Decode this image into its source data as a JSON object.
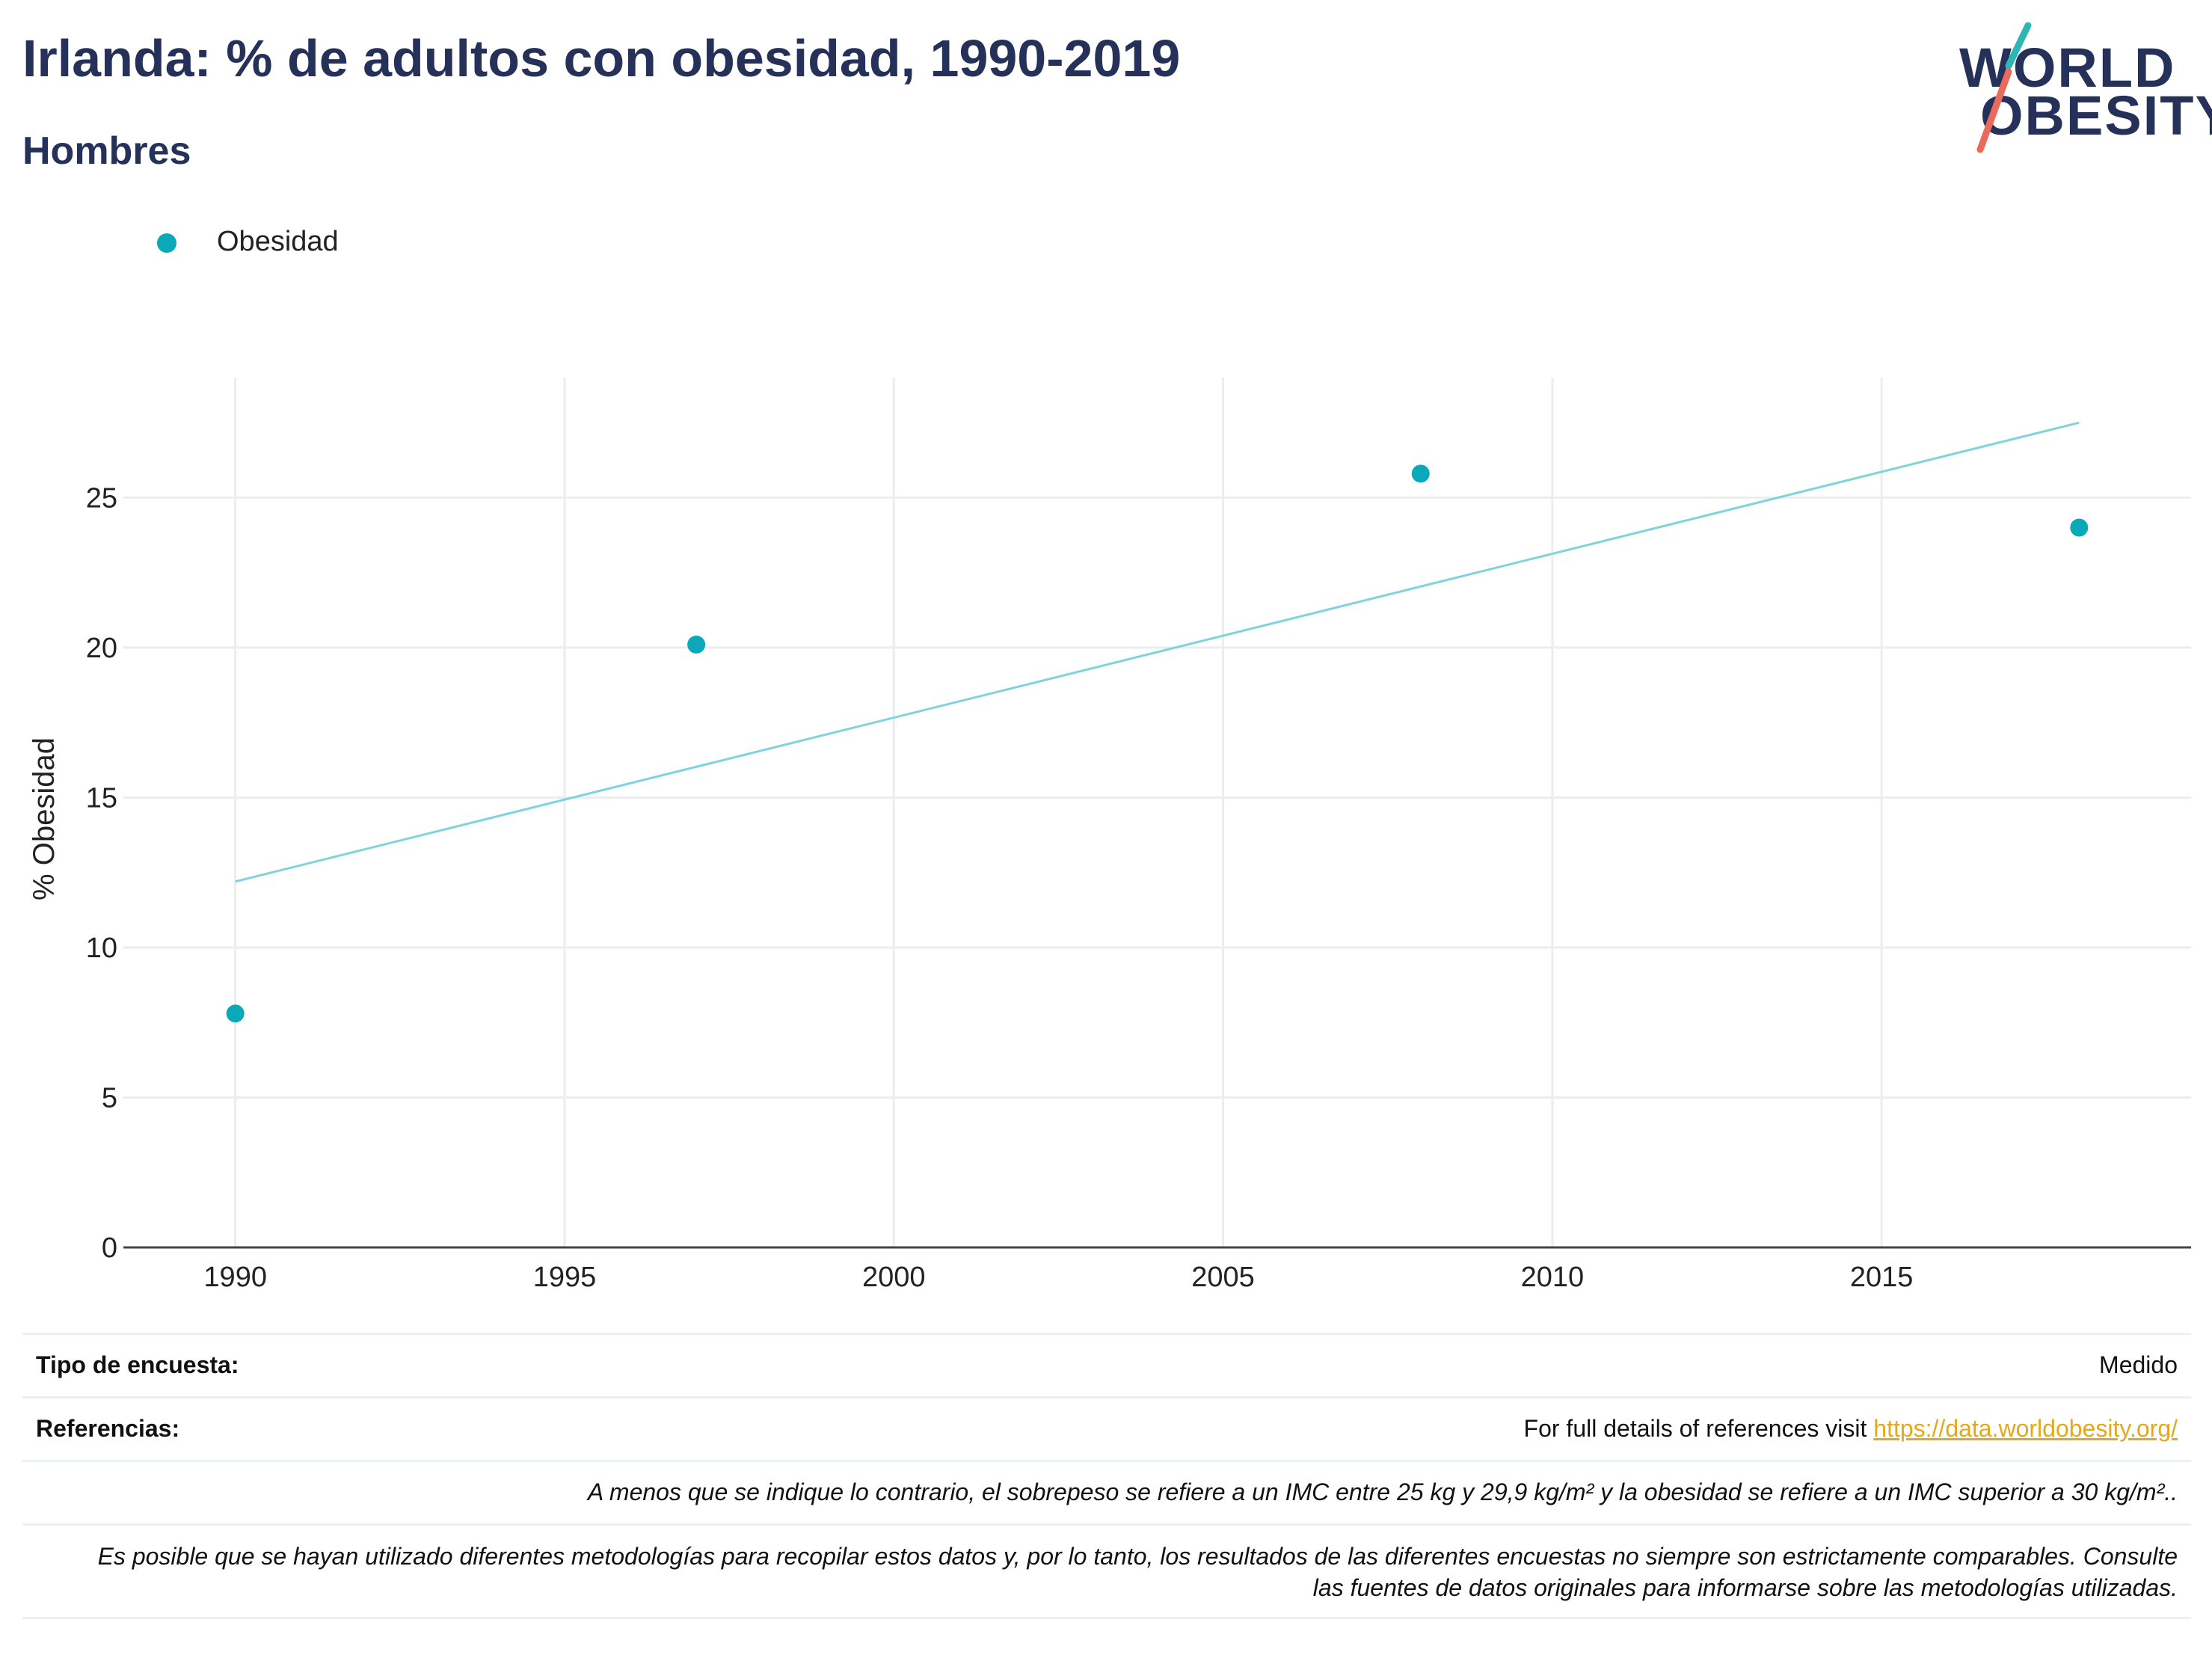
{
  "header": {
    "title": "Irlanda: % de adultos con obesidad, 1990-2019",
    "subtitle": "Hombres"
  },
  "logo": {
    "line1": "WORLD",
    "line2": "OBESITY"
  },
  "legend": {
    "label": "Obesidad"
  },
  "colors": {
    "series": "#0aa8b8",
    "trend": "#7fd4dc",
    "title": "#263159",
    "grid": "#ebedef",
    "link": "#e3a81c",
    "logo_teal": "#2cb7b6",
    "logo_coral": "#ea6b5c"
  },
  "chart_data": {
    "type": "scatter",
    "title": "Irlanda: % de adultos con obesidad, 1990-2019",
    "subtitle": "Hombres",
    "xlabel": "",
    "ylabel": "% Obesidad",
    "x_ticks": [
      1990,
      1995,
      2000,
      2005,
      2010,
      2015
    ],
    "y_ticks": [
      0,
      5,
      10,
      15,
      20,
      25
    ],
    "xlim": [
      1988.3,
      2019.7
    ],
    "ylim": [
      0,
      29
    ],
    "grid": true,
    "legend_position": "top-left",
    "series": [
      {
        "name": "Obesidad",
        "x": [
          1990,
          1997,
          2008,
          2018
        ],
        "y": [
          7.8,
          20.1,
          25.8,
          24.0
        ]
      }
    ],
    "trendline": {
      "x": [
        1990,
        2018
      ],
      "y": [
        12.2,
        27.5
      ]
    }
  },
  "info": {
    "survey_type_label": "Tipo de encuesta:",
    "survey_type_value": "Medido",
    "references_label": "Referencias:",
    "references_text": "For full details of references visit ",
    "references_link": "https://data.worldobesity.org/",
    "note_bmi": "A menos que se indique lo contrario, el sobrepeso se refiere a un IMC entre 25 kg y 29,9 kg/m² y la obesidad se refiere a un IMC superior a 30 kg/m²..",
    "note_methods": "Es posible que se hayan utilizado diferentes metodologías para recopilar estos datos y, por lo tanto, los resultados de las diferentes encuestas no siempre son estrictamente comparables. Consulte las fuentes de datos originales para informarse sobre las metodologías utilizadas."
  }
}
